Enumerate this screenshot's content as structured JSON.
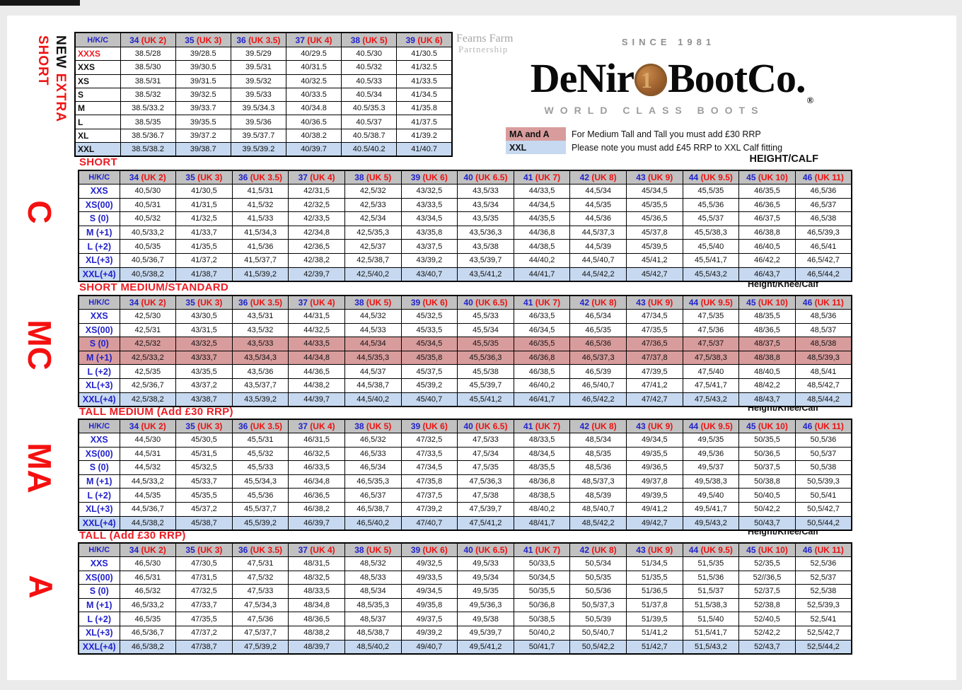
{
  "colors": {
    "accent_red": "#ed1c24",
    "accent_blue": "#2222cc",
    "header_grey": "#c1c1c1",
    "row_pink": "#d89c9c",
    "row_blue": "#c7d9f0",
    "side_letter_red": "#f51010"
  },
  "chrome": {
    "height_calf": "HEIGHT/CALF",
    "height_knee_calf": "Height/Knee/Calf"
  },
  "logo": {
    "partner_line1": "Fearns Farm",
    "partner_line2": "Partnership",
    "since": "SINCE 1981",
    "brand_left": "DeNir",
    "coin_digit": "1",
    "brand_right": "BootCo.",
    "registered": "®",
    "tagline": "WORLD CLASS BOOTS"
  },
  "notes": [
    {
      "badge": "MA and A",
      "badge_color": "#d89c9c",
      "text": "For Medium Tall and Tall you must add £30 RRP"
    },
    {
      "badge": "XXL",
      "badge_color": "#c7d9f0",
      "text": "Please note you must add £45 RRP to XXL Calf fitting"
    }
  ],
  "extra_short": {
    "side_word1": "NEW",
    "side_word2": "EXTRA",
    "side_word3": "SHORT",
    "corner": "H/K/C",
    "columns": [
      {
        "size": "34",
        "uk": "(UK 2)"
      },
      {
        "size": "35",
        "uk": "(UK 3)"
      },
      {
        "size": "36",
        "uk": "(UK 3.5)"
      },
      {
        "size": "37",
        "uk": "(UK 4)"
      },
      {
        "size": "38",
        "uk": "(UK 5)"
      },
      {
        "size": "39",
        "uk": "(UK 6)"
      }
    ],
    "rows": [
      {
        "label": "XXXS",
        "red": true,
        "bg": "white",
        "values": [
          "38.5/28",
          "39/28.5",
          "39.5/29",
          "40/29.5",
          "40.5/30",
          "41/30.5"
        ]
      },
      {
        "label": "XXS",
        "bg": "white",
        "values": [
          "38.5/30",
          "39/30.5",
          "39.5/31",
          "40/31.5",
          "40.5/32",
          "41/32.5"
        ]
      },
      {
        "label": "XS",
        "bg": "white",
        "values": [
          "38.5/31",
          "39/31.5",
          "39.5/32",
          "40/32.5",
          "40.5/33",
          "41/33.5"
        ]
      },
      {
        "label": "S",
        "bg": "white",
        "values": [
          "38.5/32",
          "39/32.5",
          "39.5/33",
          "40/33.5",
          "40.5/34",
          "41/34.5"
        ]
      },
      {
        "label": "M",
        "bg": "white",
        "values": [
          "38.5/33.2",
          "39/33.7",
          "39.5/34.3",
          "40/34.8",
          "40.5/35.3",
          "41/35.8"
        ]
      },
      {
        "label": "L",
        "bg": "white",
        "values": [
          "38.5/35",
          "39/35.5",
          "39.5/36",
          "40/36.5",
          "40.5/37",
          "41/37.5"
        ]
      },
      {
        "label": "XL",
        "bg": "white",
        "values": [
          "38.5/36.7",
          "39/37.2",
          "39.5/37.7",
          "40/38.2",
          "40.5/38.7",
          "41/39.2"
        ]
      },
      {
        "label": "XXL",
        "bg": "blue",
        "values": [
          "38.5/38.2",
          "39/38.7",
          "39.5/39.2",
          "40/39.7",
          "40.5/40.2",
          "41/40.7"
        ]
      }
    ]
  },
  "size_tables": [
    {
      "title": "SHORT",
      "side_letter": "C",
      "corner": "H/K/C",
      "columns": [
        {
          "size": "34",
          "uk": "(UK 2)"
        },
        {
          "size": "35",
          "uk": "(UK 3)"
        },
        {
          "size": "36",
          "uk": "(UK 3.5)"
        },
        {
          "size": "37",
          "uk": "(UK 4)"
        },
        {
          "size": "38",
          "uk": "(UK 5)"
        },
        {
          "size": "39",
          "uk": "(UK 6)"
        },
        {
          "size": "40",
          "uk": "(UK 6.5)"
        },
        {
          "size": "41",
          "uk": "(UK 7)"
        },
        {
          "size": "42",
          "uk": "(UK 8)"
        },
        {
          "size": "43",
          "uk": "(UK 9)"
        },
        {
          "size": "44",
          "uk": "(UK 9.5)"
        },
        {
          "size": "45",
          "uk": "(UK 10)"
        },
        {
          "size": "46",
          "uk": "(UK 11)"
        }
      ],
      "rows": [
        {
          "label": "XXS",
          "bg": "white",
          "values": [
            "40,5/30",
            "41/30,5",
            "41,5/31",
            "42/31,5",
            "42,5/32",
            "43/32,5",
            "43,5/33",
            "44/33,5",
            "44,5/34",
            "45/34,5",
            "45,5/35",
            "46/35,5",
            "46,5/36"
          ]
        },
        {
          "label": "XS(00)",
          "bg": "white",
          "values": [
            "40,5/31",
            "41/31,5",
            "41,5/32",
            "42/32,5",
            "42,5/33",
            "43/33,5",
            "43,5/34",
            "44/34,5",
            "44,5/35",
            "45/35,5",
            "45,5/36",
            "46/36,5",
            "46,5/37"
          ]
        },
        {
          "label": "S (0)",
          "bg": "white",
          "values": [
            "40,5/32",
            "41/32,5",
            "41,5/33",
            "42/33,5",
            "42,5/34",
            "43/34,5",
            "43,5/35",
            "44/35,5",
            "44,5/36",
            "45/36,5",
            "45,5/37",
            "46/37,5",
            "46,5/38"
          ]
        },
        {
          "label": "M (+1)",
          "bg": "white",
          "values": [
            "40,5/33,2",
            "41/33,7",
            "41,5/34,3",
            "42/34,8",
            "42,5/35,3",
            "43/35,8",
            "43,5/36,3",
            "44/36,8",
            "44,5/37,3",
            "45/37,8",
            "45,5/38,3",
            "46/38,8",
            "46,5/39,3"
          ]
        },
        {
          "label": "L (+2)",
          "bg": "white",
          "values": [
            "40,5/35",
            "41/35,5",
            "41,5/36",
            "42/36,5",
            "42,5/37",
            "43/37,5",
            "43,5/38",
            "44/38,5",
            "44,5/39",
            "45/39,5",
            "45,5/40",
            "46/40,5",
            "46,5/41"
          ]
        },
        {
          "label": "XL(+3)",
          "bg": "white",
          "values": [
            "40,5/36,7",
            "41/37,2",
            "41,5/37,7",
            "42/38,2",
            "42,5/38,7",
            "43/39,2",
            "43,5/39,7",
            "44/40,2",
            "44,5/40,7",
            "45/41,2",
            "45,5/41,7",
            "46/42,2",
            "46,5/42,7"
          ]
        },
        {
          "label": "XXL(+4)",
          "bg": "blue",
          "values": [
            "40,5/38,2",
            "41/38,7",
            "41,5/39,2",
            "42/39,7",
            "42,5/40,2",
            "43/40,7",
            "43,5/41,2",
            "44/41,7",
            "44,5/42,2",
            "45/42,7",
            "45,5/43,2",
            "46/43,7",
            "46,5/44,2"
          ]
        }
      ]
    },
    {
      "title": "SHORT MEDIUM/STANDARD",
      "side_letter": "MC",
      "corner": "H/K/C",
      "columns": [
        {
          "size": "34",
          "uk": "(UK 2)"
        },
        {
          "size": "35",
          "uk": "(UK 3)"
        },
        {
          "size": "36",
          "uk": "(UK 3.5)"
        },
        {
          "size": "37",
          "uk": "(UK 4)"
        },
        {
          "size": "38",
          "uk": "(UK 5)"
        },
        {
          "size": "39",
          "uk": "(UK 6)"
        },
        {
          "size": "40",
          "uk": "(UK 6.5)"
        },
        {
          "size": "41",
          "uk": "(UK 7)"
        },
        {
          "size": "42",
          "uk": "(UK 8)"
        },
        {
          "size": "43",
          "uk": "(UK 9)"
        },
        {
          "size": "44",
          "uk": "(UK 9.5)"
        },
        {
          "size": "45",
          "uk": "(UK 10)"
        },
        {
          "size": "46",
          "uk": "(UK 11)"
        }
      ],
      "rows": [
        {
          "label": "XXS",
          "bg": "white",
          "values": [
            "42,5/30",
            "43/30,5",
            "43,5/31",
            "44/31,5",
            "44,5/32",
            "45/32,5",
            "45,5/33",
            "46/33,5",
            "46,5/34",
            "47/34,5",
            "47,5/35",
            "48/35,5",
            "48,5/36"
          ]
        },
        {
          "label": "XS(00)",
          "bg": "white",
          "values": [
            "42,5/31",
            "43/31,5",
            "43,5/32",
            "44/32,5",
            "44,5/33",
            "45/33,5",
            "45,5/34",
            "46/34,5",
            "46,5/35",
            "47/35,5",
            "47,5/36",
            "48/36,5",
            "48,5/37"
          ]
        },
        {
          "label": "S (0)",
          "bg": "pink",
          "values": [
            "42,5/32",
            "43/32,5",
            "43,5/33",
            "44/33,5",
            "44,5/34",
            "45/34,5",
            "45,5/35",
            "46/35,5",
            "46,5/36",
            "47/36,5",
            "47,5/37",
            "48/37,5",
            "48,5/38"
          ]
        },
        {
          "label": "M (+1)",
          "bg": "pink",
          "values": [
            "42,5/33,2",
            "43/33,7",
            "43,5/34,3",
            "44/34,8",
            "44,5/35,3",
            "45/35,8",
            "45,5/36,3",
            "46/36,8",
            "46,5/37,3",
            "47/37,8",
            "47,5/38,3",
            "48/38,8",
            "48,5/39,3"
          ]
        },
        {
          "label": "L (+2)",
          "bg": "white",
          "values": [
            "42,5/35",
            "43/35,5",
            "43,5/36",
            "44/36,5",
            "44,5/37",
            "45/37,5",
            "45,5/38",
            "46/38,5",
            "46,5/39",
            "47/39,5",
            "47,5/40",
            "48/40,5",
            "48,5/41"
          ]
        },
        {
          "label": "XL(+3)",
          "bg": "white",
          "values": [
            "42,5/36,7",
            "43/37,2",
            "43,5/37,7",
            "44/38,2",
            "44,5/38,7",
            "45/39,2",
            "45,5/39,7",
            "46/40,2",
            "46,5/40,7",
            "47/41,2",
            "47,5/41,7",
            "48/42,2",
            "48,5/42,7"
          ]
        },
        {
          "label": "XXL(+4)",
          "bg": "blue",
          "values": [
            "42,5/38,2",
            "43/38,7",
            "43,5/39,2",
            "44/39,7",
            "44,5/40,2",
            "45/40,7",
            "45,5/41,2",
            "46/41,7",
            "46,5/42,2",
            "47/42,7",
            "47,5/43,2",
            "48/43,7",
            "48,5/44,2"
          ]
        }
      ]
    },
    {
      "title": "TALL MEDIUM (Add £30 RRP)",
      "side_letter": "MA",
      "corner": "H/K/C",
      "columns": [
        {
          "size": "34",
          "uk": "(UK 2)"
        },
        {
          "size": "35",
          "uk": "(UK 3)"
        },
        {
          "size": "36",
          "uk": "(UK 3.5)"
        },
        {
          "size": "37",
          "uk": "(UK 4)"
        },
        {
          "size": "38",
          "uk": "(UK 5)"
        },
        {
          "size": "39",
          "uk": "(UK 6)"
        },
        {
          "size": "40",
          "uk": "(UK 6.5)"
        },
        {
          "size": "41",
          "uk": "(UK 7)"
        },
        {
          "size": "42",
          "uk": "(UK 8)"
        },
        {
          "size": "43",
          "uk": "(UK 9)"
        },
        {
          "size": "44",
          "uk": "(UK 9.5)"
        },
        {
          "size": "45",
          "uk": "(UK 10)"
        },
        {
          "size": "46",
          "uk": "(UK 11)"
        }
      ],
      "rows": [
        {
          "label": "XXS",
          "bg": "white",
          "values": [
            "44,5/30",
            "45/30,5",
            "45,5/31",
            "46/31,5",
            "46,5/32",
            "47/32,5",
            "47,5/33",
            "48/33,5",
            "48,5/34",
            "49/34,5",
            "49,5/35",
            "50/35,5",
            "50,5/36"
          ]
        },
        {
          "label": "XS(00)",
          "bg": "white",
          "values": [
            "44,5/31",
            "45/31,5",
            "45,5/32",
            "46/32,5",
            "46,5/33",
            "47/33,5",
            "47,5/34",
            "48/34,5",
            "48,5/35",
            "49/35,5",
            "49,5/36",
            "50/36,5",
            "50,5/37"
          ]
        },
        {
          "label": "S (0)",
          "bg": "white",
          "values": [
            "44,5/32",
            "45/32,5",
            "45,5/33",
            "46/33,5",
            "46,5/34",
            "47/34,5",
            "47,5/35",
            "48/35,5",
            "48,5/36",
            "49/36,5",
            "49,5/37",
            "50/37,5",
            "50,5/38"
          ]
        },
        {
          "label": "M (+1)",
          "bg": "white",
          "values": [
            "44,5/33,2",
            "45/33,7",
            "45,5/34,3",
            "46/34,8",
            "46,5/35,3",
            "47/35,8",
            "47,5/36,3",
            "48/36,8",
            "48,5/37,3",
            "49/37,8",
            "49,5/38,3",
            "50/38,8",
            "50,5/39,3"
          ]
        },
        {
          "label": "L (+2)",
          "bg": "white",
          "values": [
            "44,5/35",
            "45/35,5",
            "45,5/36",
            "46/36,5",
            "46,5/37",
            "47/37,5",
            "47,5/38",
            "48/38,5",
            "48,5/39",
            "49/39,5",
            "49,5/40",
            "50/40,5",
            "50,5/41"
          ]
        },
        {
          "label": "XL(+3)",
          "bg": "white",
          "values": [
            "44,5/36,7",
            "45/37,2",
            "45,5/37,7",
            "46/38,2",
            "46,5/38,7",
            "47/39,2",
            "47,5/39,7",
            "48/40,2",
            "48,5/40,7",
            "49/41,2",
            "49,5/41,7",
            "50/42,2",
            "50,5/42,7"
          ]
        },
        {
          "label": "XXL(+4)",
          "bg": "blue",
          "values": [
            "44,5/38,2",
            "45/38,7",
            "45,5/39,2",
            "46/39,7",
            "46,5/40,2",
            "47/40,7",
            "47,5/41,2",
            "48/41,7",
            "48,5/42,2",
            "49/42,7",
            "49,5/43,2",
            "50/43,7",
            "50,5/44,2"
          ]
        }
      ]
    },
    {
      "title": "TALL (Add £30 RRP)",
      "side_letter": "A",
      "corner": "H/K/C",
      "columns": [
        {
          "size": "34",
          "uk": "(UK 2)"
        },
        {
          "size": "35",
          "uk": "(UK 3)"
        },
        {
          "size": "36",
          "uk": "(UK 3.5)"
        },
        {
          "size": "37",
          "uk": "(UK 4)"
        },
        {
          "size": "38",
          "uk": "(UK 5)"
        },
        {
          "size": "39",
          "uk": "(UK 6)"
        },
        {
          "size": "40",
          "uk": "(UK 6.5)"
        },
        {
          "size": "41",
          "uk": "(UK 7)"
        },
        {
          "size": "42",
          "uk": "(UK 8)"
        },
        {
          "size": "43",
          "uk": "(UK 9)"
        },
        {
          "size": "44",
          "uk": "(UK 9.5)"
        },
        {
          "size": "45",
          "uk": "(UK 10)"
        },
        {
          "size": "46",
          "uk": "(UK 11)"
        }
      ],
      "rows": [
        {
          "label": "XXS",
          "bg": "white",
          "values": [
            "46,5/30",
            "47/30,5",
            "47,5/31",
            "48/31,5",
            "48,5/32",
            "49/32,5",
            "49,5/33",
            "50/33,5",
            "50,5/34",
            "51/34,5",
            "51,5/35",
            "52/35,5",
            "52,5/36"
          ]
        },
        {
          "label": "XS(00)",
          "bg": "white",
          "values": [
            "46,5/31",
            "47/31,5",
            "47,5/32",
            "48/32,5",
            "48,5/33",
            "49/33,5",
            "49,5/34",
            "50/34,5",
            "50,5/35",
            "51/35,5",
            "51,5/36",
            "52//36,5",
            "52,5/37"
          ]
        },
        {
          "label": "S (0)",
          "bg": "white",
          "values": [
            "46,5/32",
            "47/32,5",
            "47,5/33",
            "48/33,5",
            "48,5/34",
            "49/34,5",
            "49,5/35",
            "50/35,5",
            "50,5/36",
            "51/36,5",
            "51,5/37",
            "52/37,5",
            "52,5/38"
          ]
        },
        {
          "label": "M (+1)",
          "bg": "white",
          "values": [
            "46,5/33,2",
            "47/33,7",
            "47,5/34,3",
            "48/34,8",
            "48,5/35,3",
            "49/35,8",
            "49,5/36,3",
            "50/36,8",
            "50,5/37,3",
            "51/37,8",
            "51,5/38,3",
            "52/38,8",
            "52,5/39,3"
          ]
        },
        {
          "label": "L (+2)",
          "bg": "white",
          "values": [
            "46,5/35",
            "47/35,5",
            "47,5/36",
            "48/36,5",
            "48,5/37",
            "49/37,5",
            "49,5/38",
            "50/38,5",
            "50,5/39",
            "51/39,5",
            "51,5/40",
            "52/40,5",
            "52,5/41"
          ]
        },
        {
          "label": "XL(+3)",
          "bg": "white",
          "values": [
            "46,5/36,7",
            "47/37,2",
            "47,5/37,7",
            "48/38,2",
            "48,5/38,7",
            "49/39,2",
            "49,5/39,7",
            "50/40,2",
            "50,5/40,7",
            "51/41,2",
            "51,5/41,7",
            "52/42,2",
            "52,5/42,7"
          ]
        },
        {
          "label": "XXL(+4)",
          "bg": "blue",
          "values": [
            "46,5/38,2",
            "47/38,7",
            "47,5/39,2",
            "48/39,7",
            "48,5/40,2",
            "49/40,7",
            "49,5/41,2",
            "50/41,7",
            "50,5/42,2",
            "51/42,7",
            "51,5/43,2",
            "52/43,7",
            "52,5/44,2"
          ]
        }
      ]
    }
  ]
}
